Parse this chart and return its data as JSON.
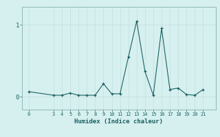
{
  "xlabel": "Humidex (Indice chaleur)",
  "bg_color": "#d6f0ef",
  "line_color": "#1a6060",
  "grid_color": "#c0dede",
  "spine_color": "#90b8b8",
  "x_values": [
    0,
    3,
    4,
    5,
    6,
    7,
    8,
    9,
    10,
    11,
    12,
    13,
    14,
    15,
    16,
    17,
    18,
    19,
    20,
    21
  ],
  "y_values": [
    0.07,
    0.02,
    0.02,
    0.05,
    0.02,
    0.02,
    0.02,
    0.18,
    0.04,
    0.04,
    0.55,
    1.05,
    0.35,
    0.02,
    0.95,
    0.1,
    0.12,
    0.03,
    0.02,
    0.1
  ],
  "xticks": [
    0,
    3,
    4,
    5,
    6,
    7,
    8,
    9,
    10,
    11,
    12,
    13,
    14,
    15,
    16,
    17,
    18,
    19,
    20,
    21
  ],
  "yticks": [
    0,
    1
  ],
  "ylim": [
    -0.18,
    1.25
  ],
  "xlim": [
    -0.8,
    22.5
  ]
}
